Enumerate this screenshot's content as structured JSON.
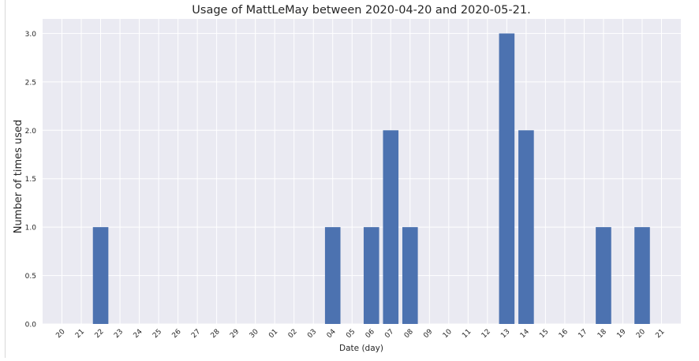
{
  "chart_data": {
    "type": "bar",
    "title": "Usage of MattLeMay between 2020-04-20 and 2020-05-21.",
    "xlabel": "Date (day)",
    "ylabel": "Number of times used",
    "categories": [
      "20",
      "21",
      "22",
      "23",
      "24",
      "25",
      "26",
      "27",
      "28",
      "29",
      "30",
      "01",
      "02",
      "03",
      "04",
      "05",
      "06",
      "07",
      "08",
      "09",
      "10",
      "11",
      "12",
      "13",
      "14",
      "15",
      "16",
      "17",
      "18",
      "19",
      "20",
      "21"
    ],
    "values": [
      0,
      0,
      1,
      0,
      0,
      0,
      0,
      0,
      0,
      0,
      0,
      0,
      0,
      0,
      1,
      0,
      1,
      2,
      1,
      0,
      0,
      0,
      0,
      3,
      2,
      0,
      0,
      0,
      1,
      0,
      1,
      0
    ],
    "ylim": [
      0,
      3.15
    ],
    "yticks": [
      "0.0",
      "0.5",
      "1.0",
      "1.5",
      "2.0",
      "2.5",
      "3.0"
    ],
    "grid": true,
    "colors": {
      "bar": "#4c72b0",
      "background": "#eaeaf2",
      "grid": "#ffffff",
      "text": "#262626"
    }
  }
}
